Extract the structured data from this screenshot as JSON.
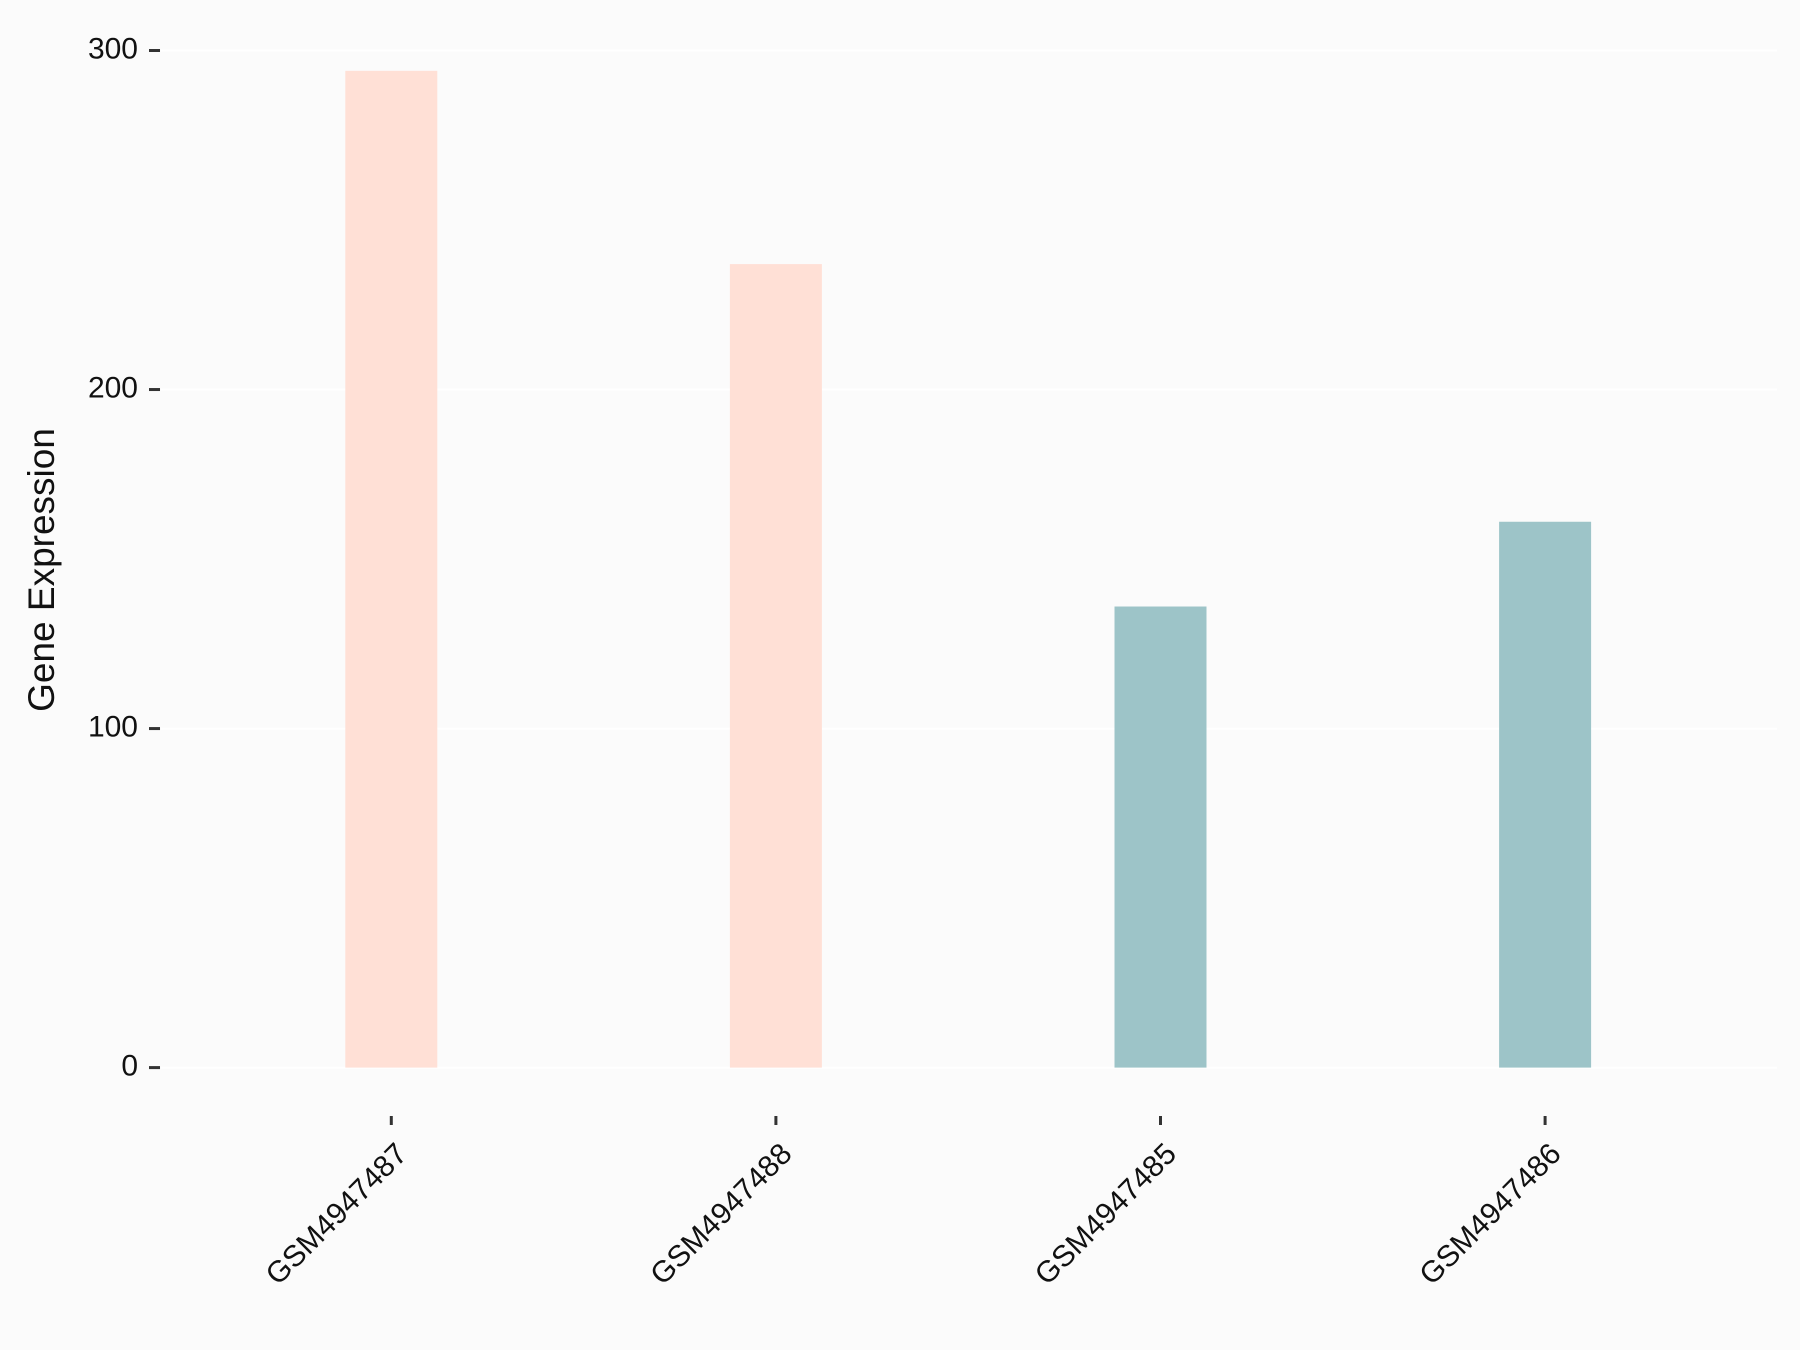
{
  "chart_data": {
    "type": "bar",
    "y_label": "Gene Expression",
    "categories": [
      "GSM4947487",
      "GSM4947488",
      "GSM4947485",
      "GSM4947486"
    ],
    "values": [
      294,
      237,
      136,
      161
    ],
    "colors": [
      "#FFE0D6",
      "#FFE0D6",
      "#9DC4C8",
      "#9DC4C8"
    ],
    "ylim": [
      0,
      300
    ],
    "yticks": [
      0,
      100,
      200,
      300
    ],
    "grid": true
  }
}
